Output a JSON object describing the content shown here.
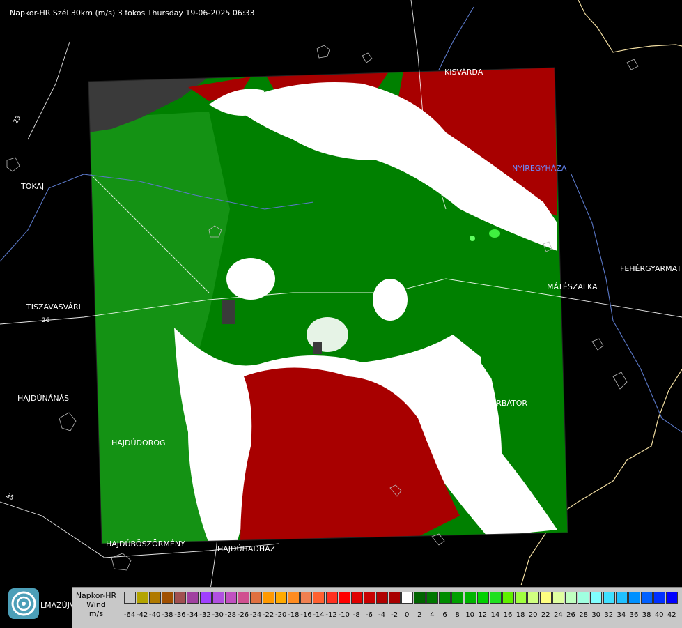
{
  "title": "Napkor-HR Szél 30km (m/s) 3 fokos Thursday 19-06-2025 06:33",
  "cities": [
    {
      "id": "kisvarda",
      "name": "KISVÁRDA"
    },
    {
      "id": "tokaj",
      "name": "TOKAJ"
    },
    {
      "id": "nyiregyhaza",
      "name": "NYÍREGYHÁZA"
    },
    {
      "id": "tiszavasvari",
      "name": "TISZAVASVÁRI"
    },
    {
      "id": "feheryarmat",
      "name": "FEHÉRGYARMAT"
    },
    {
      "id": "mateszalka",
      "name": "MÁTÉSZALKA"
    },
    {
      "id": "hajdunanas",
      "name": "HAJDÚNÁNÁS"
    },
    {
      "id": "nyirbator",
      "name": "NYÍRBÁTOR"
    },
    {
      "id": "hajdudorog",
      "name": "HAJDÚDOROG"
    },
    {
      "id": "hajduboszormeny",
      "name": "HAJDÚBÖSZÖRMÉNY"
    },
    {
      "id": "hajduhadhaz",
      "name": "HAJDÚHADHÁZ"
    },
    {
      "id": "nyirmada_partial",
      "name": "LMAZÚJVÁR"
    }
  ],
  "road_labels": [
    "25",
    "26",
    "35"
  ],
  "legend": {
    "line1": "Napkor-HR",
    "line2": "Wind",
    "line3": "m/s",
    "values": [
      "-64",
      "-42",
      "-40",
      "-38",
      "-36",
      "-34",
      "-32",
      "-30",
      "-28",
      "-26",
      "-24",
      "-22",
      "-20",
      "-18",
      "-16",
      "-14",
      "-12",
      "-10",
      "-8",
      "-6",
      "-4",
      "-2",
      "0",
      "2",
      "4",
      "6",
      "8",
      "10",
      "12",
      "14",
      "16",
      "18",
      "20",
      "22",
      "24",
      "26",
      "28",
      "30",
      "32",
      "34",
      "36",
      "38",
      "40",
      "42"
    ],
    "colors": [
      "#c8c8c8",
      "#b3a400",
      "#b07a00",
      "#a05000",
      "#a05050",
      "#a040a0",
      "#a040ff",
      "#b050e0",
      "#c050c0",
      "#d05090",
      "#e07040",
      "#ff9900",
      "#ffaa00",
      "#ff8c20",
      "#f08050",
      "#ff6030",
      "#ff3020",
      "#ff0000",
      "#e00000",
      "#c80000",
      "#b00000",
      "#a80000",
      "#ffffff",
      "#006400",
      "#007800",
      "#008c00",
      "#00a000",
      "#00b400",
      "#00d000",
      "#20e020",
      "#60f000",
      "#a0ff40",
      "#d0ff80",
      "#ffff80",
      "#e0ffa0",
      "#c0ffc0",
      "#a0ffe0",
      "#80ffff",
      "#40e0ff",
      "#20c0ff",
      "#0090ff",
      "#0060ff",
      "#0030ff",
      "#0000ff"
    ]
  },
  "colors": {
    "approach": "#008000",
    "recede": "#a80000",
    "zero": "#ffffff",
    "background": "#000000",
    "border": "#f0dca0",
    "river": "#5a78c8"
  }
}
